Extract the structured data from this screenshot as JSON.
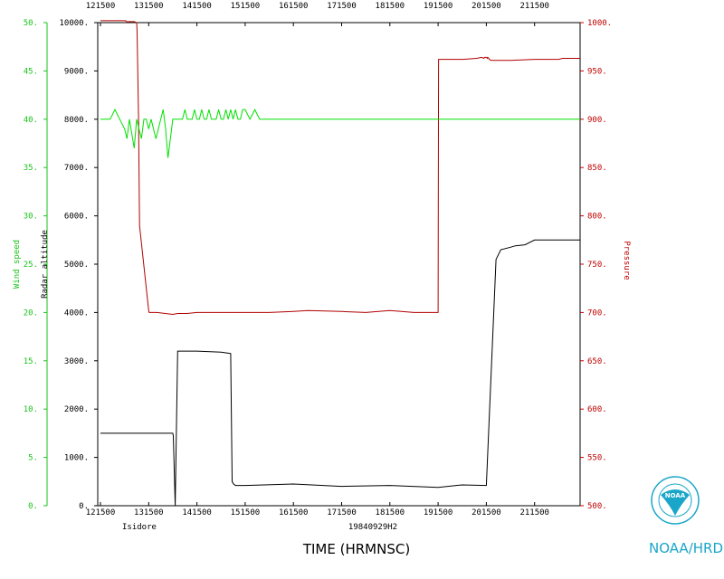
{
  "chart_data": {
    "type": "line",
    "title": "",
    "xlabel": "TIME (HRMNSC)",
    "x_ticks": [
      "121500",
      "131500",
      "141500",
      "151500",
      "161500",
      "171500",
      "181500",
      "191500",
      "201500",
      "211500"
    ],
    "storm_name": "Isidore",
    "flight_id": "19840929H2",
    "credit": "NOAA/HRD",
    "logo_text": "NOAA",
    "axes": {
      "wind": {
        "label": "Wind speed",
        "ylim": [
          0,
          50
        ],
        "ticks": [
          "0.",
          "5.",
          "10.",
          "15.",
          "20.",
          "25.",
          "30.",
          "35.",
          "40.",
          "45.",
          "50."
        ],
        "color": "#19c319"
      },
      "altitude": {
        "label": "Radar altitude",
        "ylim": [
          0,
          10000
        ],
        "ticks": [
          "0.",
          "1000.",
          "2000.",
          "3000.",
          "4000.",
          "5000.",
          "6000.",
          "7000.",
          "8000.",
          "9000.",
          "10000."
        ],
        "color": "#000000"
      },
      "pressure": {
        "label": "Pressure",
        "ylim": [
          500,
          1000
        ],
        "ticks": [
          "500.",
          "550.",
          "600.",
          "650.",
          "700.",
          "750.",
          "800.",
          "850.",
          "900.",
          "950.",
          "1000."
        ],
        "color": "#c00000"
      }
    },
    "series": [
      {
        "name": "Pressure",
        "axis": "pressure",
        "color": "#b00000",
        "x": [
          0,
          0.52,
          0.55,
          0.57,
          0.58,
          0.7,
          0.75,
          0.76,
          0.79,
          0.8,
          0.81,
          1.0,
          1.01,
          1.02,
          1.03,
          1.04,
          1.05,
          1.06,
          1.07,
          1.08,
          1.09,
          1.1,
          1.11,
          1.12,
          1.13,
          1.14,
          1.15,
          1.16,
          1.17,
          1.5,
          1.6,
          1.8,
          2.0,
          2.5,
          3.0,
          3.5,
          4.0,
          4.3,
          5.0,
          5.5,
          6.0,
          6.5,
          6.8,
          7.0,
          7.01,
          7.2,
          7.5,
          7.51,
          7.8,
          7.9,
          7.95,
          7.96,
          8.0,
          8.02,
          8.03,
          8.05,
          8.06,
          8.1,
          8.5,
          9.0,
          9.5,
          9.58,
          9.59,
          9.62,
          9.68,
          9.72,
          9.75,
          9.78,
          9.82,
          9.85,
          9.88,
          9.92,
          9.95,
          9.97,
          10.0
        ],
        "y": [
          1002,
          1002,
          1001,
          1000,
          1001,
          1001,
          1000,
          990,
          900,
          850,
          790,
          702,
          700,
          700,
          700,
          700,
          700,
          700,
          700,
          700,
          700,
          700,
          700,
          700,
          700,
          700,
          700,
          700,
          700,
          698,
          699,
          699,
          700,
          700,
          700,
          700,
          701,
          702,
          701,
          700,
          702,
          700,
          700,
          700,
          962,
          962,
          962,
          962,
          963,
          964,
          963,
          964,
          964,
          963,
          964,
          963,
          962,
          961,
          961,
          962,
          962,
          963,
          963,
          963,
          963,
          963,
          963,
          963,
          963,
          963,
          963,
          963,
          963,
          963,
          963
        ]
      },
      {
        "name": "Radar altitude",
        "axis": "altitude",
        "color": "#000000",
        "x": [
          0,
          1.5,
          1.51,
          1.55,
          1.6,
          1.7,
          2.0,
          2.5,
          2.7,
          2.73,
          2.76,
          2.8,
          3.0,
          4.0,
          5.0,
          6.0,
          7.0,
          7.5,
          8.0,
          8.2,
          8.3,
          8.5,
          8.6,
          8.8,
          9.0,
          9.5,
          9.95,
          10.0
        ],
        "y": [
          1500,
          1500,
          1450,
          0,
          3200,
          3200,
          3200,
          3180,
          3150,
          500,
          450,
          420,
          420,
          450,
          400,
          420,
          380,
          430,
          420,
          5100,
          5300,
          5350,
          5380,
          5400,
          5500,
          5500,
          5500,
          5500
        ]
      },
      {
        "name": "Wind speed",
        "axis": "wind",
        "color": "#00e000",
        "x": [
          0,
          0.1,
          0.2,
          0.3,
          0.4,
          0.5,
          0.55,
          0.6,
          0.7,
          0.75,
          0.8,
          0.85,
          0.9,
          0.95,
          1.0,
          1.05,
          1.1,
          1.15,
          1.2,
          1.25,
          1.3,
          1.35,
          1.4,
          1.45,
          1.5,
          1.55,
          1.6,
          1.65,
          1.7,
          1.75,
          1.8,
          1.85,
          1.9,
          1.95,
          2.0,
          2.05,
          2.1,
          2.15,
          2.2,
          2.25,
          2.3,
          2.35,
          2.4,
          2.45,
          2.5,
          2.55,
          2.6,
          2.65,
          2.7,
          2.75,
          2.8,
          2.85,
          2.9,
          2.95,
          3.0,
          3.1,
          3.2,
          3.3,
          3.4,
          3.5,
          3.6,
          3.7,
          3.8,
          3.9,
          4.0,
          4.1,
          4.2,
          4.3,
          4.4,
          4.5,
          4.6,
          4.7,
          4.8,
          4.9,
          5.0,
          5.1,
          5.2,
          5.3,
          5.4,
          5.5,
          5.6,
          5.7,
          5.8,
          5.9,
          6.0,
          6.1,
          6.2,
          6.3,
          6.4,
          6.5,
          6.6,
          6.7,
          6.8,
          6.9,
          7.0,
          7.1,
          7.2,
          7.3,
          7.4,
          7.5,
          7.6,
          7.7,
          7.8,
          7.9,
          8.0,
          8.1,
          8.2,
          8.3,
          8.4,
          8.5,
          8.6,
          8.7,
          8.8,
          8.9,
          9.0,
          9.1,
          9.2,
          9.3,
          9.4,
          9.5,
          9.6,
          9.7,
          9.8,
          9.9,
          10.0
        ],
        "y": [
          40,
          40,
          40,
          41,
          40,
          39,
          38,
          40,
          37,
          40,
          39,
          38,
          40,
          40,
          39,
          40,
          39,
          38,
          39,
          40,
          41,
          39,
          36,
          38,
          40,
          40,
          40,
          40,
          40,
          41,
          40,
          40,
          40,
          41,
          40,
          40,
          41,
          40,
          40,
          41,
          40,
          40,
          40,
          41,
          40,
          40,
          41,
          40,
          41,
          40,
          41,
          40,
          40,
          41,
          41,
          40,
          41,
          40,
          40,
          40,
          40,
          40,
          40,
          40,
          40,
          40,
          40,
          40,
          40,
          40,
          40,
          40,
          40,
          40,
          40,
          40,
          40,
          40,
          40,
          40,
          40,
          40,
          40,
          40,
          40,
          40,
          40,
          40,
          40,
          40,
          40,
          40,
          40,
          40,
          40,
          40,
          40,
          40,
          40,
          40,
          40,
          40,
          40,
          40,
          40,
          40,
          40,
          40,
          40,
          40,
          40,
          40,
          40,
          40,
          40,
          40,
          40,
          40,
          40,
          40,
          40,
          40,
          40,
          40,
          40
        ]
      }
    ]
  }
}
